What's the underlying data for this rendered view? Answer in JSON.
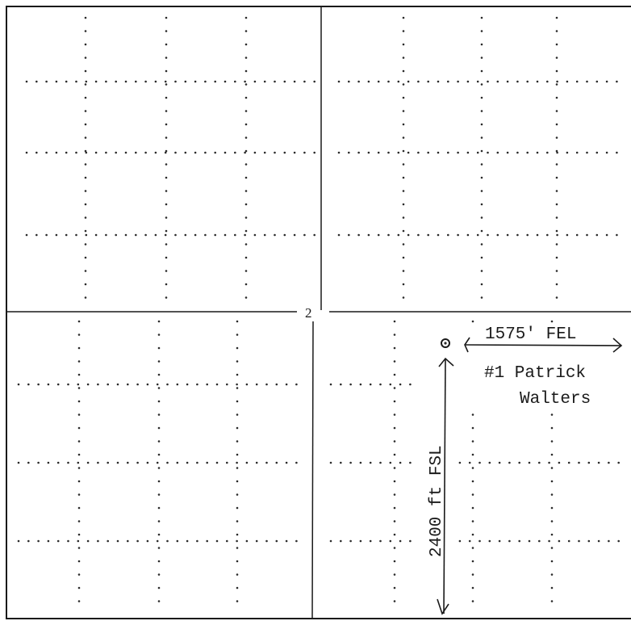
{
  "section": {
    "number": "2"
  },
  "well": {
    "name_line1": "#1 Patrick",
    "name_line2": "Walters",
    "east_offset_label": "1575' FEL",
    "south_offset_label": "2400 ft FSL",
    "symbol": "well-location-circle-icon"
  },
  "colors": {
    "ink": "#1a1a1a",
    "paper": "#ffffff"
  }
}
